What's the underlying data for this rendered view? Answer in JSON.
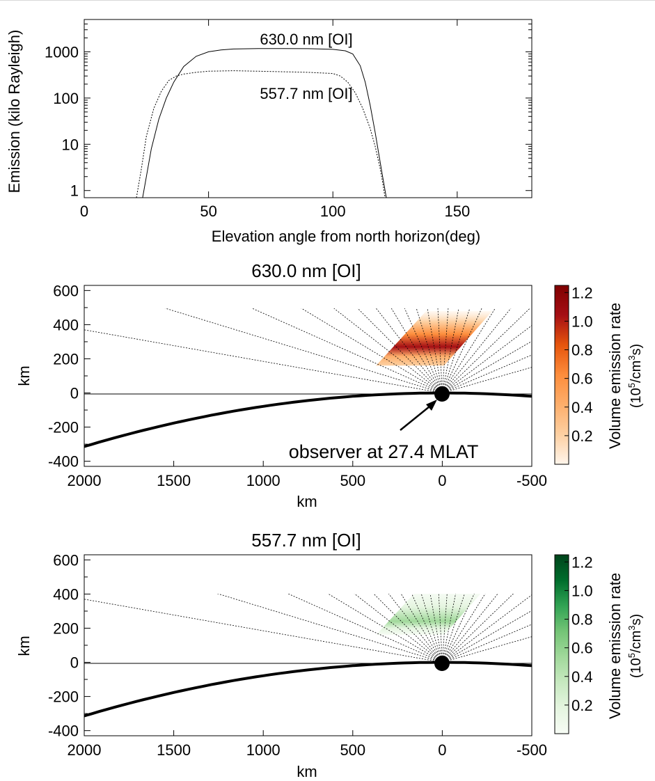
{
  "chart_data": [
    {
      "type": "line",
      "xlabel": "Elevation angle from north horizon(deg)",
      "ylabel": "Emission (kilo Rayleigh)",
      "xlim": [
        0,
        180
      ],
      "ylim": [
        0.7,
        5000
      ],
      "yscale": "log",
      "xticks": [
        0,
        50,
        100,
        150
      ],
      "yticks": [
        1,
        10,
        100,
        1000
      ],
      "series": [
        {
          "name": "630.0 nm [OI]",
          "style": "solid",
          "x": [
            23.5,
            25,
            27,
            30,
            33,
            36,
            40,
            45,
            50,
            55,
            60,
            70,
            80,
            90,
            100,
            105,
            108,
            111,
            113,
            115,
            117,
            118.5,
            120,
            121,
            121.5
          ],
          "y": [
            0.7,
            2,
            8,
            35,
            100,
            220,
            480,
            800,
            1000,
            1100,
            1150,
            1180,
            1180,
            1170,
            1130,
            1050,
            900,
            500,
            220,
            70,
            18,
            6,
            2,
            1,
            0.7
          ]
        },
        {
          "name": "557.7 nm [OI]",
          "style": "dotted",
          "x": [
            21,
            23,
            25,
            28,
            31,
            34,
            37,
            40,
            45,
            50,
            60,
            70,
            80,
            90,
            100,
            103,
            106,
            109,
            112,
            115,
            117,
            119,
            120,
            121
          ],
          "y": [
            0.7,
            3,
            15,
            60,
            140,
            240,
            300,
            330,
            360,
            380,
            390,
            380,
            370,
            360,
            340,
            300,
            220,
            130,
            60,
            22,
            9,
            3,
            1.5,
            0.7
          ]
        }
      ]
    },
    {
      "type": "heatmap",
      "title": "630.0 nm [OI]",
      "xlabel": "km",
      "ylabel": "km",
      "xlim": [
        2000,
        -500
      ],
      "ylim": [
        -430,
        630
      ],
      "xticks": [
        2000,
        1500,
        1000,
        500,
        0,
        -500
      ],
      "yticks": [
        -400,
        -200,
        0,
        200,
        400,
        600
      ],
      "colorbar_label": "Volume emission rate",
      "colorbar_units": "(10⁵/cm³s)",
      "colorbar_ticks": [
        0.2,
        0.4,
        0.6,
        0.8,
        1.0,
        1.2
      ],
      "colorbar_range": [
        0,
        1.25
      ],
      "colormap": [
        "#fff5eb",
        "#fdd0a2",
        "#fdae6b",
        "#fd8d3c",
        "#e6550d",
        "#a50f15",
        "#7f0000"
      ],
      "emission_peak_km": 270,
      "emission_peak_value": 1.1,
      "emission_region_top_km": 480,
      "emission_region_bottom_km": 160,
      "observer": "observer at 27.4 MLAT"
    },
    {
      "type": "heatmap",
      "title": "557.7 nm [OI]",
      "xlabel": "km",
      "ylabel": "km",
      "xlim": [
        2000,
        -500
      ],
      "ylim": [
        -430,
        630
      ],
      "xticks": [
        2000,
        1500,
        1000,
        500,
        0,
        -500
      ],
      "yticks": [
        -400,
        -200,
        0,
        200,
        400,
        600
      ],
      "colorbar_label": "Volume emission rate",
      "colorbar_units": "(10⁵/cm³s)",
      "colorbar_ticks": [
        0.2,
        0.4,
        0.6,
        0.8,
        1.0,
        1.2
      ],
      "colorbar_range": [
        0,
        1.25
      ],
      "colormap": [
        "#f7fcf5",
        "#e5f5e0",
        "#c7e9c0",
        "#a1d99b",
        "#74c476",
        "#31a354",
        "#006d2c",
        "#00441b"
      ],
      "emission_peak_km": 240,
      "emission_peak_value": 0.45,
      "emission_region_top_km": 480,
      "emission_region_bottom_km": 160
    }
  ],
  "labels": {
    "line1": "630.0 nm [OI]",
    "line2": "557.7 nm [OI]",
    "observer": "observer at 27.4 MLAT",
    "cb_label": "Volume emission rate",
    "cb_units_base": "(10",
    "cb_units_exp": "5",
    "cb_units_mid": "/cm",
    "cb_units_exp2": "3",
    "cb_units_end": "s)"
  }
}
